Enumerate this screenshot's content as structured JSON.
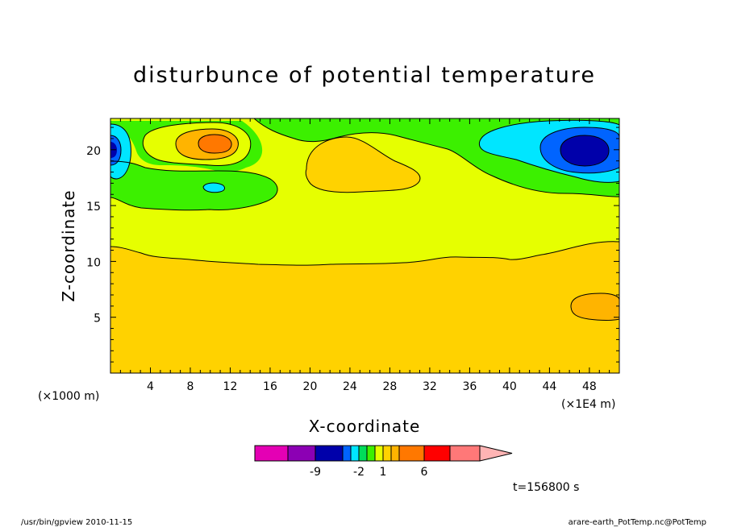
{
  "chart_data": {
    "type": "heatmap",
    "title": "disturbunce of potential temperature",
    "xlabel": "X-coordinate",
    "ylabel": "Z-coordinate",
    "xlim": [
      0,
      51
    ],
    "ylim": [
      0,
      22.8
    ],
    "x_ticks": [
      "4",
      "8",
      "12",
      "16",
      "20",
      "24",
      "28",
      "32",
      "36",
      "40",
      "44",
      "48"
    ],
    "x_tick_values": [
      4,
      8,
      12,
      16,
      20,
      24,
      28,
      32,
      36,
      40,
      44,
      48
    ],
    "y_ticks": [
      "5",
      "10",
      "15",
      "20"
    ],
    "y_tick_values": [
      5,
      10,
      15,
      20
    ],
    "x_unit_left": "(×1000 m)",
    "x_unit_right": "(×1E4 m)",
    "colorbar": {
      "colors": [
        "#e400b4",
        "#8c00b4",
        "#0000aa",
        "#0064ff",
        "#00e6ff",
        "#00dc5a",
        "#3cf000",
        "#e6ff00",
        "#ffd200",
        "#ffb400",
        "#ff7800",
        "#ff0000",
        "#ff7878",
        "#ffb4b4"
      ],
      "labels": [
        "-9",
        "-2",
        "1",
        "6"
      ],
      "extend": "max"
    },
    "contour_regions": [
      {
        "name": "upper-layer",
        "color": "#e6ff00"
      },
      {
        "name": "lower-layer",
        "color": "#ffd200"
      },
      {
        "name": "green-zones",
        "color": "#3cf000"
      },
      {
        "name": "cyan-zones",
        "color": "#00e6ff"
      },
      {
        "name": "blue-zones",
        "color": "#0000aa"
      },
      {
        "name": "orange-zones",
        "color": "#ffb400"
      }
    ],
    "time_label": "t=156800 s"
  },
  "footer": {
    "left": "/usr/bin/gpview   2010-11-15",
    "right": "arare-earth_PotTemp.nc@PotTemp"
  }
}
